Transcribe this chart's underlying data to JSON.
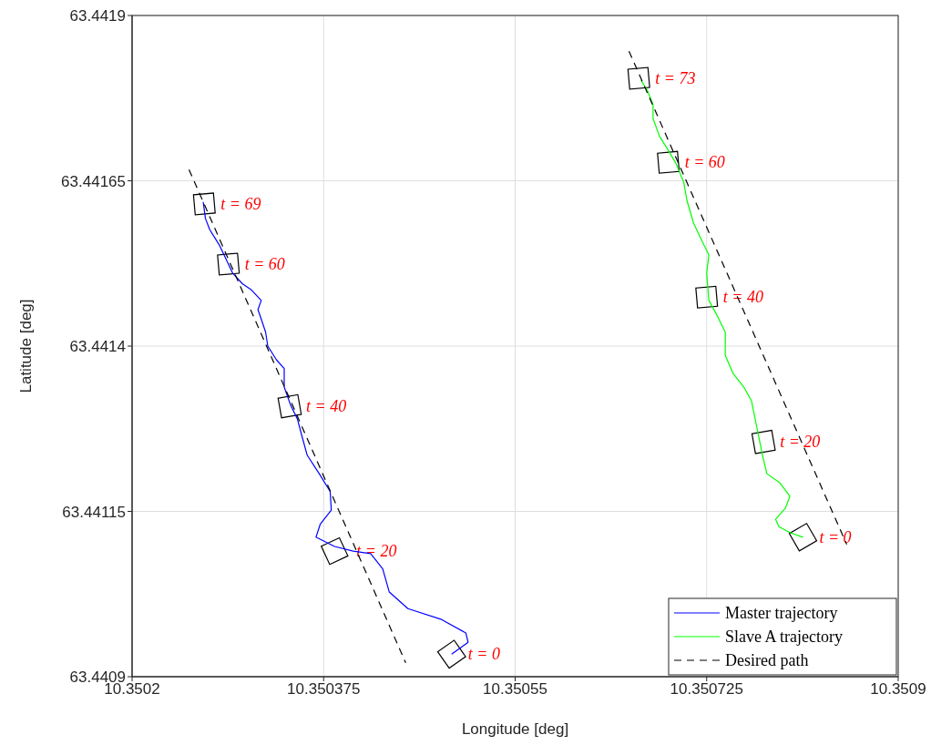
{
  "chart_data": {
    "type": "line",
    "xlabel": "Longitude [deg]",
    "ylabel": "Latitude [deg]",
    "xlim": [
      10.3502,
      10.3509
    ],
    "xticks": [
      10.3502,
      10.350375,
      10.35055,
      10.350725,
      10.3509
    ],
    "ylim": [
      63.4409,
      63.4419
    ],
    "yticks": [
      63.4409,
      63.44115,
      63.4414,
      63.44165,
      63.4419
    ],
    "grid": true,
    "legend": "bottom right",
    "marker": "none",
    "series": [
      {
        "name": "Master trajectory",
        "color": "#0000ff",
        "line_style": "solid",
        "x": [
          10.350492,
          10.350507,
          10.350505,
          10.350482,
          10.350452,
          10.350435,
          10.350429,
          10.350418,
          10.350402,
          10.350385,
          10.350368,
          10.350372,
          10.350382,
          10.350381,
          10.350371,
          10.35036,
          10.350355,
          10.350351,
          10.350345,
          10.350339,
          10.350339,
          10.350332,
          10.350324,
          10.350322,
          10.350318,
          10.350315,
          10.350318,
          10.350309,
          10.350301,
          10.350292,
          10.350288,
          10.35028,
          10.350271,
          10.350267,
          10.350265
        ],
        "values": [
          63.440934,
          63.440952,
          63.440966,
          63.440987,
          63.441003,
          63.441028,
          63.441063,
          63.441086,
          63.44109,
          63.441097,
          63.441111,
          63.441131,
          63.441152,
          63.44118,
          63.441207,
          63.441235,
          63.441265,
          63.44129,
          63.44131,
          63.441338,
          63.441366,
          63.441379,
          63.4414,
          63.441421,
          63.441441,
          63.441455,
          63.441469,
          63.441485,
          63.441494,
          63.44151,
          63.441524,
          63.441552,
          63.441576,
          63.441593,
          63.441618
        ]
      },
      {
        "name": "Slave A trajectory",
        "color": "#00ff00",
        "line_style": "solid",
        "x": [
          10.350813,
          10.350801,
          10.350791,
          10.350788,
          10.350797,
          10.350801,
          10.350792,
          10.35078,
          10.350776,
          10.350771,
          10.350766,
          10.350759,
          10.350749,
          10.350742,
          10.350742,
          10.350734,
          10.350727,
          10.350725,
          10.350727,
          10.350721,
          10.350713,
          10.350707,
          10.350704,
          10.350697,
          10.35069,
          10.350682,
          10.350676,
          10.350676,
          10.350671,
          10.350665
        ],
        "values": [
          63.441111,
          63.441118,
          63.441127,
          63.441138,
          63.441155,
          63.441173,
          63.441193,
          63.441207,
          63.441235,
          63.441276,
          63.441317,
          63.441338,
          63.441359,
          63.441386,
          63.441421,
          63.441448,
          63.441469,
          63.44151,
          63.441538,
          63.441558,
          63.441586,
          63.44162,
          63.441648,
          63.441676,
          63.441696,
          63.441717,
          63.441744,
          63.441765,
          63.441786,
          63.441802
        ]
      },
      {
        "name": "Desired path",
        "color": "#000000",
        "line_style": "dashed",
        "x": [
          10.350252,
          10.35045,
          10.35055,
          10.350654,
          10.350853
        ],
        "values": [
          63.441667,
          63.440921,
          null,
          63.441846,
          63.4411
        ]
      }
    ],
    "annotations": [
      {
        "text": "t = 0",
        "x": 10.350492,
        "y": 63.440934
      },
      {
        "text": "t = 20",
        "x": 10.350385,
        "y": 63.44109
      },
      {
        "text": "t = 40",
        "x": 10.350344,
        "y": 63.441309
      },
      {
        "text": "t = 60",
        "x": 10.350288,
        "y": 63.441524
      },
      {
        "text": "t = 69",
        "x": 10.350266,
        "y": 63.441615
      },
      {
        "text": "t = 0",
        "x": 10.350813,
        "y": 63.441111
      },
      {
        "text": "t = 20",
        "x": 10.350777,
        "y": 63.441255
      },
      {
        "text": "t = 40",
        "x": 10.350725,
        "y": 63.441474
      },
      {
        "text": "t = 60",
        "x": 10.35069,
        "y": 63.441678
      },
      {
        "text": "t = 73",
        "x": 10.350663,
        "y": 63.441805
      }
    ]
  }
}
